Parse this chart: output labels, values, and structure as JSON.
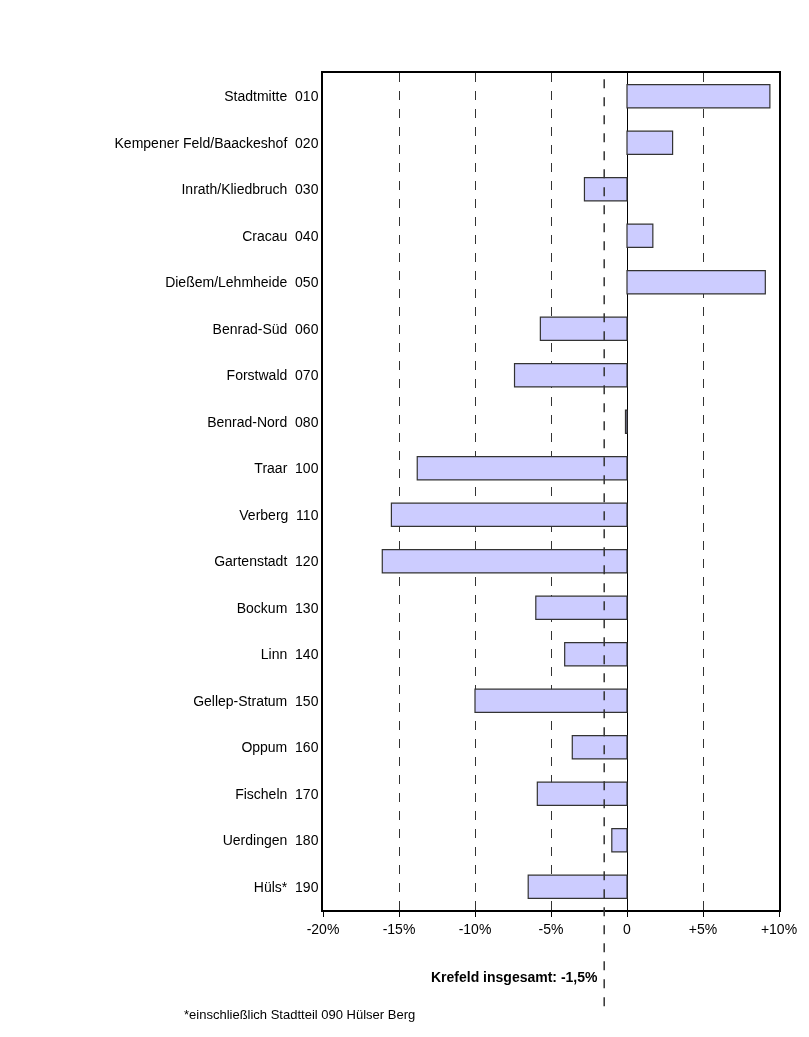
{
  "chart_data": {
    "type": "bar",
    "orientation": "horizontal",
    "categories": [
      "Stadtmitte  010",
      "Kempener Feld/Baackeshof  020",
      "Inrath/Kliedbruch  030",
      "Cracau  040",
      "Dießem/Lehmheide  050",
      "Benrad-Süd  060",
      "Forstwald  070",
      "Benrad-Nord  080",
      "Traar  100",
      "Verberg  110",
      "Gartenstadt  120",
      "Bockum  130",
      "Linn  140",
      "Gellep-Stratum  150",
      "Oppum  160",
      "Fischeln  170",
      "Uerdingen  180",
      "Hüls*  190"
    ],
    "values": [
      9.4,
      3.0,
      -2.8,
      1.7,
      9.1,
      -5.7,
      -7.4,
      -0.1,
      -13.8,
      -15.5,
      -16.1,
      -6.0,
      -4.1,
      -10.0,
      -3.6,
      -5.9,
      -1.0,
      -6.5
    ],
    "color": "#ccccff",
    "xlim": [
      -20,
      10
    ],
    "xticks": [
      {
        "value": -20,
        "label": "-20%"
      },
      {
        "value": -15,
        "label": "-15%"
      },
      {
        "value": -10,
        "label": "-10%"
      },
      {
        "value": -5,
        "label": "-5%"
      },
      0,
      {
        "value": 5,
        "label": "+5%"
      },
      {
        "value": 10,
        "label": "+10%"
      }
    ],
    "grid": "x",
    "ref_lines": [
      {
        "axis": "x",
        "value": -1.5,
        "label": "Krefeld insgesamt: -1,5%",
        "line_style": "dashed",
        "color": "#333333"
      }
    ],
    "annotations": [
      "*einschließlich Stadtteil 090 Hülser Berg"
    ]
  }
}
